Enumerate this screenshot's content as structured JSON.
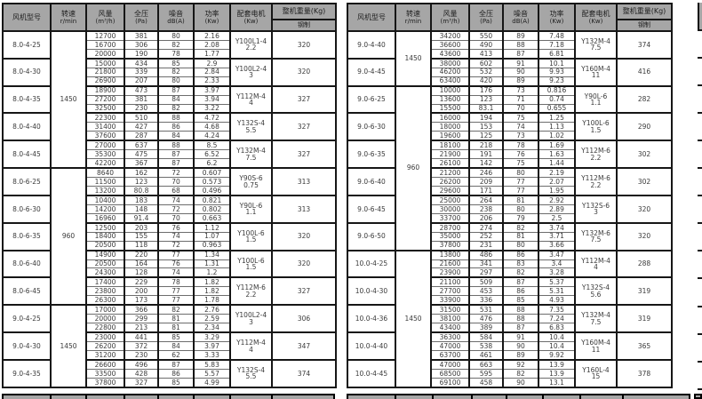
{
  "header": {
    "model": "风机型号",
    "speed": [
      "转速",
      "r/min"
    ],
    "volume": [
      "风量",
      "(m³/h)"
    ],
    "pressure": [
      "全压",
      "(Pa)"
    ],
    "noise": [
      "噪音",
      "dB(A)"
    ],
    "power": [
      "功率",
      "(Kw)"
    ],
    "motor": [
      "配套电机",
      "(Kw)"
    ],
    "weight_main": "整机重量(Kg)",
    "weight_sub": "钢制"
  },
  "tables": [
    {
      "name": "left",
      "speed_spans": [
        {
          "value": "1450",
          "groups": 5
        },
        {
          "value": "960",
          "groups": 5
        },
        {
          "value": "1450",
          "groups": 3
        }
      ],
      "groups": [
        {
          "model": "8.0-4-25",
          "volume": [
            "12700",
            "16700",
            "20000"
          ],
          "pressure": [
            "381",
            "306",
            "190"
          ],
          "noise": [
            "80",
            "82",
            "78"
          ],
          "power": [
            "2.16",
            "2.08",
            "1.77"
          ],
          "motor": "Y100L1-4",
          "motor_kw": "2.2",
          "weight": "320"
        },
        {
          "model": "8.0-4-30",
          "volume": [
            "15000",
            "21800",
            "26900"
          ],
          "pressure": [
            "434",
            "339",
            "207"
          ],
          "noise": [
            "85",
            "82",
            "80"
          ],
          "power": [
            "2.9",
            "2.84",
            "2.33"
          ],
          "motor": "Y100L2-4",
          "motor_kw": "3",
          "weight": "320"
        },
        {
          "model": "8.0-4-35",
          "volume": [
            "18900",
            "27200",
            "32500"
          ],
          "pressure": [
            "473",
            "381",
            "230"
          ],
          "noise": [
            "87",
            "84",
            "82"
          ],
          "power": [
            "3.97",
            "3.94",
            "3.22"
          ],
          "motor": "Y112M-4",
          "motor_kw": "4",
          "weight": "327"
        },
        {
          "model": "8.0-4-40",
          "volume": [
            "22300",
            "31400",
            "37600"
          ],
          "pressure": [
            "510",
            "427",
            "287"
          ],
          "noise": [
            "88",
            "86",
            "84"
          ],
          "power": [
            "4.72",
            "4.68",
            "4.24"
          ],
          "motor": "Y132S-4",
          "motor_kw": "5.5",
          "weight": "327"
        },
        {
          "model": "8.0-4-45",
          "volume": [
            "27000",
            "35300",
            "42200"
          ],
          "pressure": [
            "637",
            "475",
            "367"
          ],
          "noise": [
            "88",
            "87",
            "87"
          ],
          "power": [
            "8.5",
            "6.52",
            "6.2"
          ],
          "motor": "Y132M-4",
          "motor_kw": "7.5",
          "weight": "327"
        },
        {
          "model": "8.0-6-25",
          "volume": [
            "8640",
            "11500",
            "13200"
          ],
          "pressure": [
            "162",
            "123",
            "80.8"
          ],
          "noise": [
            "72",
            "70",
            "68"
          ],
          "power": [
            "0.607",
            "0.573",
            "0.496"
          ],
          "motor": "Y90S-6",
          "motor_kw": "0.75",
          "weight": "313"
        },
        {
          "model": "8.0-6-30",
          "volume": [
            "10400",
            "14200",
            "16960"
          ],
          "pressure": [
            "183",
            "148",
            "91.4"
          ],
          "noise": [
            "74",
            "72",
            "70"
          ],
          "power": [
            "0.821",
            "0.802",
            "0.663"
          ],
          "motor": "Y90L-6",
          "motor_kw": "1.1",
          "weight": "313"
        },
        {
          "model": "8.0-6-35",
          "volume": [
            "12500",
            "18400",
            "20500"
          ],
          "pressure": [
            "203",
            "155",
            "118"
          ],
          "noise": [
            "76",
            "74",
            "72"
          ],
          "power": [
            "1.12",
            "1.07",
            "0.963"
          ],
          "motor": "Y100L-6",
          "motor_kw": "1.5",
          "weight": "320"
        },
        {
          "model": "8.0-6-40",
          "volume": [
            "14900",
            "20500",
            "24300"
          ],
          "pressure": [
            "220",
            "164",
            "128"
          ],
          "noise": [
            "77",
            "76",
            "74"
          ],
          "power": [
            "1.34",
            "1.31",
            "1.2"
          ],
          "motor": "Y100L-6",
          "motor_kw": "1.5",
          "weight": "320"
        },
        {
          "model": "8.0-6-45",
          "volume": [
            "17400",
            "23800",
            "26300"
          ],
          "pressure": [
            "229",
            "200",
            "173"
          ],
          "noise": [
            "78",
            "77",
            "77"
          ],
          "power": [
            "1.82",
            "1.82",
            "1.78"
          ],
          "motor": "Y112M-6",
          "motor_kw": "2.2",
          "weight": "327"
        },
        {
          "model": "9.0-4-25",
          "volume": [
            "17000",
            "20000",
            "22800"
          ],
          "pressure": [
            "366",
            "299",
            "213"
          ],
          "noise": [
            "82",
            "81",
            "81"
          ],
          "power": [
            "2.76",
            "2.59",
            "2.34"
          ],
          "motor": "Y100L2-4",
          "motor_kw": "3",
          "weight": "306"
        },
        {
          "model": "9.0-4-30",
          "volume": [
            "23000",
            "26200",
            "31200"
          ],
          "pressure": [
            "441",
            "372",
            "230"
          ],
          "noise": [
            "85",
            "84",
            "62"
          ],
          "power": [
            "3.29",
            "3.97",
            "3.33"
          ],
          "motor": "Y112M-4",
          "motor_kw": "4",
          "weight": "347"
        },
        {
          "model": "9.0-4-35",
          "volume": [
            "26600",
            "33500",
            "37800"
          ],
          "pressure": [
            "496",
            "428",
            "327"
          ],
          "noise": [
            "87",
            "86",
            "85"
          ],
          "power": [
            "5.83",
            "5.57",
            "4.99"
          ],
          "motor": "Y132S-4",
          "motor_kw": "5.5",
          "weight": "374"
        }
      ]
    },
    {
      "name": "right",
      "speed_spans": [
        {
          "value": "1450",
          "groups": 2
        },
        {
          "value": "960",
          "groups": 6
        },
        {
          "value": "1450",
          "groups": 5
        }
      ],
      "groups": [
        {
          "model": "9.0-4-40",
          "volume": [
            "34200",
            "36600",
            "43600"
          ],
          "pressure": [
            "550",
            "490",
            "413"
          ],
          "noise": [
            "89",
            "88",
            "87"
          ],
          "power": [
            "7.48",
            "7.18",
            "6.81"
          ],
          "motor": "Y132M-4",
          "motor_kw": "7.5",
          "weight": "374"
        },
        {
          "model": "9.0-4-45",
          "volume": [
            "38000",
            "46200",
            "63400"
          ],
          "pressure": [
            "602",
            "532",
            "420"
          ],
          "noise": [
            "91",
            "90",
            "89"
          ],
          "power": [
            "10.1",
            "9.93",
            "9.23"
          ],
          "motor": "Y160M-4",
          "motor_kw": "11",
          "weight": "416"
        },
        {
          "model": "9.0-6-25",
          "volume": [
            "10000",
            "13600",
            "15500"
          ],
          "pressure": [
            "176",
            "123",
            "83.1"
          ],
          "noise": [
            "73",
            "71",
            "70"
          ],
          "power": [
            "0.816",
            "0.74",
            "0.655"
          ],
          "motor": "Y90L-6",
          "motor_kw": "1.1",
          "weight": "282"
        },
        {
          "model": "9.0-6-30",
          "volume": [
            "16000",
            "18000",
            "19600"
          ],
          "pressure": [
            "194",
            "153",
            "125"
          ],
          "noise": [
            "75",
            "74",
            "73"
          ],
          "power": [
            "1.25",
            "1.13",
            "1.02"
          ],
          "motor": "Y100L-6",
          "motor_kw": "1.5",
          "weight": "290"
        },
        {
          "model": "9.0-6-35",
          "volume": [
            "18100",
            "21900",
            "26100"
          ],
          "pressure": [
            "218",
            "191",
            "142"
          ],
          "noise": [
            "78",
            "76",
            "75"
          ],
          "power": [
            "1.69",
            "1.63",
            "1.44"
          ],
          "motor": "Y112M-6",
          "motor_kw": "2.2",
          "weight": "302"
        },
        {
          "model": "9.0-6-40",
          "volume": [
            "21200",
            "26200",
            "29600"
          ],
          "pressure": [
            "246",
            "209",
            "171"
          ],
          "noise": [
            "80",
            "77",
            "77"
          ],
          "power": [
            "2.19",
            "2.07",
            "1.95"
          ],
          "motor": "Y112M-6",
          "motor_kw": "2.2",
          "weight": "302"
        },
        {
          "model": "9.0-6-45",
          "volume": [
            "25000",
            "30000",
            "33700"
          ],
          "pressure": [
            "264",
            "238",
            "206"
          ],
          "noise": [
            "81",
            "80",
            "79"
          ],
          "power": [
            "2.92",
            "2.89",
            "2.5"
          ],
          "motor": "Y132S-6",
          "motor_kw": "3",
          "weight": "320"
        },
        {
          "model": "9.0-6-50",
          "volume": [
            "28700",
            "35000",
            "37800"
          ],
          "pressure": [
            "274",
            "252",
            "231"
          ],
          "noise": [
            "82",
            "81",
            "80"
          ],
          "power": [
            "3.74",
            "3.71",
            "3.66"
          ],
          "motor": "Y132M-6",
          "motor_kw": "7.5",
          "weight": "320"
        },
        {
          "model": "10.0-4-25",
          "volume": [
            "13800",
            "21600",
            "23900"
          ],
          "pressure": [
            "486",
            "341",
            "297"
          ],
          "noise": [
            "86",
            "83",
            "82"
          ],
          "power": [
            "3.47",
            "3.4",
            "3.28"
          ],
          "motor": "Y112M-4",
          "motor_kw": "4",
          "weight": "288"
        },
        {
          "model": "10.0-4-30",
          "volume": [
            "21100",
            "27700",
            "33900"
          ],
          "pressure": [
            "509",
            "453",
            "336"
          ],
          "noise": [
            "87",
            "86",
            "85"
          ],
          "power": [
            "5.37",
            "5.31",
            "4.93"
          ],
          "motor": "Y132S-4",
          "motor_kw": "5.6",
          "weight": "319"
        },
        {
          "model": "10.0-4-36",
          "volume": [
            "31500",
            "38100",
            "43400"
          ],
          "pressure": [
            "531",
            "476",
            "389"
          ],
          "noise": [
            "88",
            "88",
            "87"
          ],
          "power": [
            "7.35",
            "7.24",
            "6.83"
          ],
          "motor": "Y132M-4",
          "motor_kw": "7.5",
          "weight": "319"
        },
        {
          "model": "10.0-4-40",
          "volume": [
            "36300",
            "47000",
            "63700"
          ],
          "pressure": [
            "584",
            "538",
            "461"
          ],
          "noise": [
            "91",
            "90",
            "89"
          ],
          "power": [
            "10.4",
            "10.4",
            "9.92"
          ],
          "motor": "Y160M-4",
          "motor_kw": "11",
          "weight": "365"
        },
        {
          "model": "10.0-4-45",
          "volume": [
            "47000",
            "68500",
            "69100"
          ],
          "pressure": [
            "663",
            "595",
            "458"
          ],
          "noise": [
            "92",
            "82",
            "90"
          ],
          "power": [
            "13.9",
            "13.9",
            "13.1"
          ],
          "motor": "Y160L-4",
          "motor_kw": "15",
          "weight": "378"
        }
      ]
    }
  ]
}
